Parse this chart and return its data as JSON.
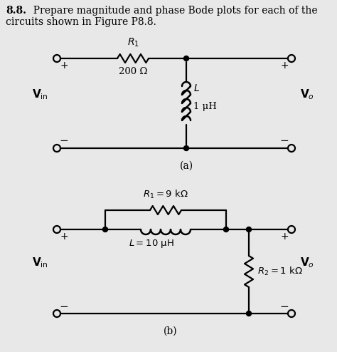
{
  "bg_color": "#e8e8e8",
  "fig_w": 4.74,
  "fig_h": 4.94,
  "dpi": 100,
  "header_bold": "8.8.",
  "header_text": "  Prepare magnitude and phase Bode plots for each of the",
  "header_text2": "circuits shown in Figure P8.8.",
  "circuit_a_label": "(a)",
  "circuit_b_label": "(b)",
  "R1a_label": "$R_1$",
  "R1a_val": "200 Ω",
  "La_label": "$L$",
  "La_val": "1 μH",
  "R1b_label": "$R_1 = 9\\ \\mathrm{k\\Omega}$",
  "Lb_label": "$L = 10\\ \\mathrm{\\mu H}$",
  "R2b_label": "$R_2 = 1\\ \\mathrm{k\\Omega}$",
  "Vin_label": "$\\mathbf{V}_{\\mathrm{in}}$",
  "Vo_label": "$\\mathbf{V}_o$"
}
